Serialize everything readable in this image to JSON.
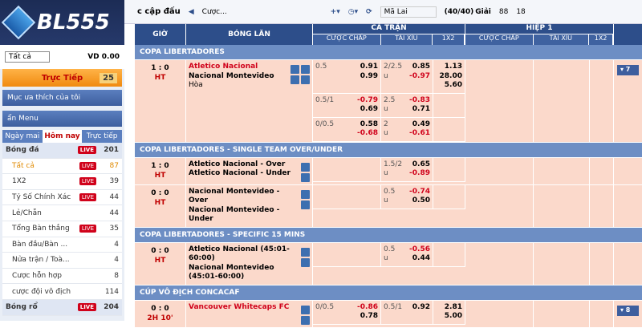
{
  "sidebar": {
    "logo": "BL555",
    "filter": "Tất cả",
    "balance": "VD 0.00",
    "live_label": "Trực Tiếp",
    "live_count": "25",
    "favorites": "Mục ưa thích của tôi",
    "menu_title": "ẩn Menu",
    "tabs": [
      "Ngày mai",
      "Hôm nay",
      "Trực tiếp"
    ],
    "live_badge": "LIVE",
    "sports": [
      {
        "name": "Bóng đá",
        "live": true,
        "count": "201",
        "head": true
      },
      {
        "name": "Tất cả",
        "live": true,
        "count": "87",
        "active": true
      },
      {
        "name": "1X2",
        "live": true,
        "count": "39"
      },
      {
        "name": "Tỷ Số Chính Xác",
        "live": true,
        "count": "44"
      },
      {
        "name": "Lẻ/Chẵn",
        "count": "44"
      },
      {
        "name": "Tổng Bàn thắng",
        "live": true,
        "count": "35"
      },
      {
        "name": "Bàn đầu/Bàn ...",
        "count": "4"
      },
      {
        "name": "Nửa trận / Toà...",
        "count": "4"
      },
      {
        "name": "Cược hỗn hợp",
        "count": "8"
      },
      {
        "name": "cược đội vô địch",
        "count": "114"
      },
      {
        "name": "Bóng rổ",
        "live": true,
        "count": "204",
        "head": true
      }
    ]
  },
  "topbar": {
    "title": "c cập đấu",
    "bet": "Cược...",
    "odds_type": "Mã Lai",
    "league_count": "(40/40)",
    "league_label": "Giải",
    "count_a": "88",
    "count_b": "18"
  },
  "table": {
    "headers": {
      "time": "GIỜ",
      "live": "BÓNG LĂN",
      "full": "CẢ TRẬN",
      "half": "HIỆP 1",
      "sub": [
        "CƯỢC CHẤP",
        "TÀI XỈU",
        "1X2",
        "CƯỢC CHẤP",
        "TÀI XỈU",
        "1X2"
      ]
    },
    "leagues": [
      {
        "name": "COPA LIBERTADORES",
        "matches": [
          {
            "time": "1 : 0",
            "period": "HT",
            "teams": [
              "Atletico Nacional",
              "Nacional Montevideo"
            ],
            "draw": "Hòa",
            "favorite": 0,
            "more": "▾ 7",
            "lines": [
              {
                "hdp": "0.5",
                "hdp_odds": [
                  "0.91",
                  "0.99"
                ],
                "ou": "2/2.5",
                "ou_u": "u",
                "ou_odds": [
                  "0.85",
                  "-0.97"
                ],
                "x12": [
                  "1.13",
                  "28.00",
                  "5.60"
                ]
              },
              {
                "hdp": "0.5/1",
                "hdp_odds": [
                  "-0.79",
                  "0.69"
                ],
                "ou": "2.5",
                "ou_u": "u",
                "ou_odds": [
                  "-0.83",
                  "0.71"
                ]
              },
              {
                "hdp": "0/0.5",
                "hdp_odds": [
                  "0.58",
                  "-0.68"
                ],
                "ou": "2",
                "ou_u": "u",
                "ou_odds": [
                  "0.49",
                  "-0.61"
                ]
              }
            ]
          }
        ]
      },
      {
        "name": "COPA LIBERTADORES - SINGLE TEAM OVER/UNDER",
        "matches": [
          {
            "time": "1 : 0",
            "period": "HT",
            "teams": [
              "Atletico Nacional - Over",
              "Atletico Nacional - Under"
            ],
            "lines": [
              {
                "ou": "1.5/2",
                "ou_u": "u",
                "ou_odds": [
                  "0.65",
                  "-0.89"
                ]
              }
            ]
          },
          {
            "time": "0 : 0",
            "period": "HT",
            "teams": [
              "Nacional Montevideo - Over",
              "Nacional Montevideo - Under"
            ],
            "lines": [
              {
                "ou": "0.5",
                "ou_u": "u",
                "ou_odds": [
                  "-0.74",
                  "0.50"
                ]
              }
            ]
          }
        ]
      },
      {
        "name": "COPA LIBERTADORES - SPECIFIC 15 MINS",
        "matches": [
          {
            "time": "0 : 0",
            "period": "HT",
            "teams": [
              "Atletico Nacional (45:01-60:00)",
              "Nacional Montevideo (45:01-60:00)"
            ],
            "lines": [
              {
                "ou": "0.5",
                "ou_u": "u",
                "ou_odds": [
                  "-0.56",
                  "0.44"
                ]
              }
            ]
          }
        ]
      },
      {
        "name": "CÚP VÔ ĐỊCH CONCACAF",
        "matches": [
          {
            "time": "0 : 0",
            "period": "2H 10'",
            "teams": [
              "Vancouver Whitecaps FC"
            ],
            "favorite": 0,
            "more": "▾ 8",
            "lines": [
              {
                "hdp": "0/0.5",
                "hdp_odds": [
                  "-0.86",
                  "0.78"
                ],
                "ou": "0.5/1",
                "ou_odds": [
                  "0.92"
                ],
                "x12": [
                  "2.81",
                  "5.00"
                ]
              }
            ]
          }
        ]
      }
    ]
  }
}
